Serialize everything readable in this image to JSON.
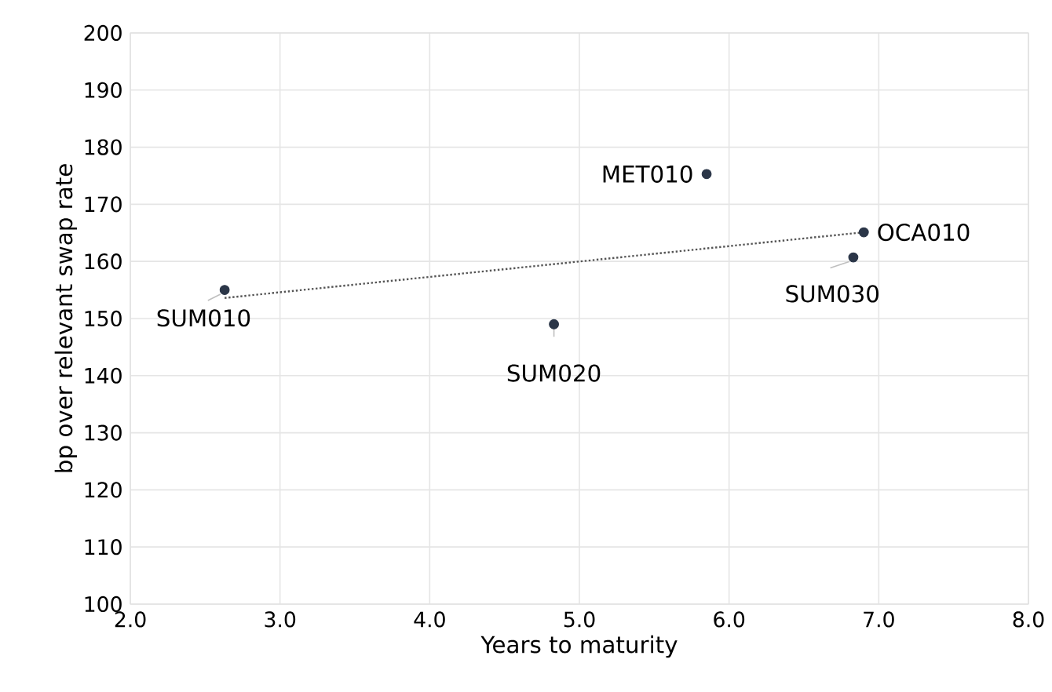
{
  "chart_data": {
    "type": "scatter",
    "xlabel": "Years to maturity",
    "ylabel": "bp over relevant swap rate",
    "xlim": [
      2.0,
      8.0
    ],
    "ylim": [
      100,
      200
    ],
    "xticks": [
      {
        "value": 2,
        "label": "2.0"
      },
      {
        "value": 3,
        "label": "3.0"
      },
      {
        "value": 4,
        "label": "4.0"
      },
      {
        "value": 5,
        "label": "5.0"
      },
      {
        "value": 6,
        "label": "6.0"
      },
      {
        "value": 7,
        "label": "7.0"
      },
      {
        "value": 8,
        "label": "8.0"
      }
    ],
    "yticks": [
      100,
      110,
      120,
      130,
      140,
      150,
      160,
      170,
      180,
      190,
      200
    ],
    "grid": true,
    "series": [
      {
        "color": "#2b3648",
        "x": [
          2.63,
          4.83,
          5.85,
          6.9,
          6.83
        ],
        "values": [
          155,
          149,
          175.3,
          165.1,
          160.7
        ]
      },
      {
        "type": "line",
        "marker": "none",
        "line_style": "dotted",
        "color": "#555555",
        "x": [
          2.63,
          6.9
        ],
        "values": [
          153.6,
          165.1
        ]
      }
    ],
    "annotations": [
      {
        "text": "SUM010",
        "x": 2.63,
        "y": 155
      },
      {
        "text": "SUM020",
        "x": 4.83,
        "y": 149
      },
      {
        "text": "MET010",
        "x": 5.85,
        "y": 175.3
      },
      {
        "text": "OCA010",
        "x": 6.9,
        "y": 165.1
      },
      {
        "text": "SUM030",
        "x": 6.83,
        "y": 160.7
      }
    ]
  }
}
